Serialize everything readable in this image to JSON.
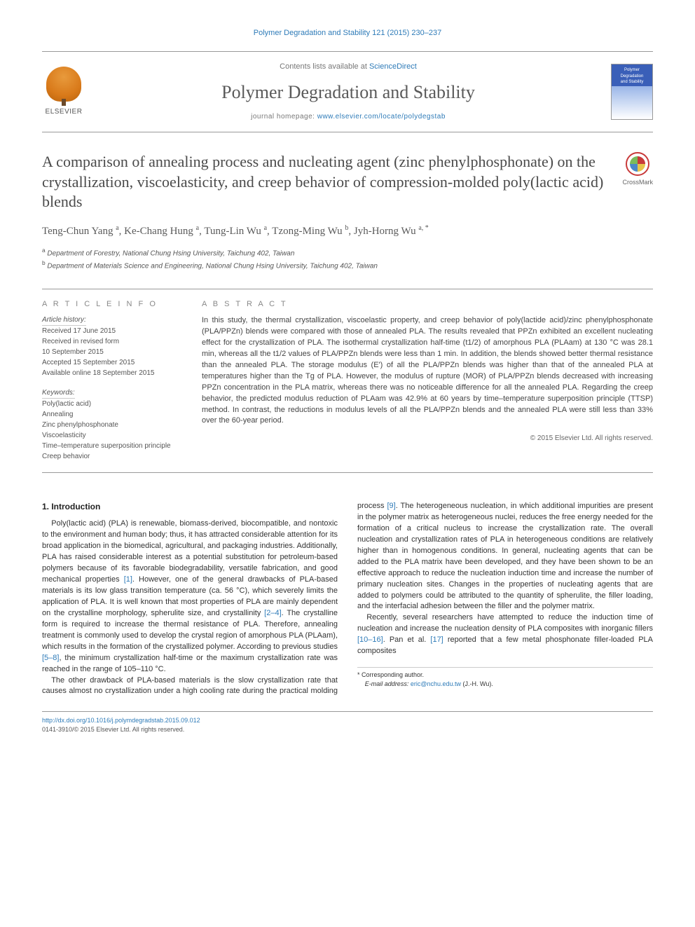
{
  "header": {
    "citation": "Polymer Degradation and Stability 121 (2015) 230–237",
    "contents_line_prefix": "Contents lists available at ",
    "contents_line_link": "ScienceDirect",
    "journal_name": "Polymer Degradation and Stability",
    "homepage_prefix": "journal homepage: ",
    "homepage_url": "www.elsevier.com/locate/polydegstab",
    "elsevier_label": "ELSEVIER",
    "cover_line1": "Polymer",
    "cover_line2": "Degradation",
    "cover_line3": "and Stability"
  },
  "title": "A comparison of annealing process and nucleating agent (zinc phenylphosphonate) on the crystallization, viscoelasticity, and creep behavior of compression-molded poly(lactic acid) blends",
  "crossmark_label": "CrossMark",
  "authors_html": "Teng-Chun Yang <sup>a</sup>, Ke-Chang Hung <sup>a</sup>, Tung-Lin Wu <sup>a</sup>, Tzong-Ming Wu <sup>b</sup>, Jyh-Horng Wu <sup>a, *</sup>",
  "affiliations": [
    "a Department of Forestry, National Chung Hsing University, Taichung 402, Taiwan",
    "b Department of Materials Science and Engineering, National Chung Hsing University, Taichung 402, Taiwan"
  ],
  "article_info": {
    "heading": "A R T I C L E  I N F O",
    "history_label": "Article history:",
    "received": "Received 17 June 2015",
    "revised1": "Received in revised form",
    "revised2": "10 September 2015",
    "accepted": "Accepted 15 September 2015",
    "online": "Available online 18 September 2015",
    "keywords_label": "Keywords:",
    "keywords": [
      "Poly(lactic acid)",
      "Annealing",
      "Zinc phenylphosphonate",
      "Viscoelasticity",
      "Time–temperature superposition principle",
      "Creep behavior"
    ]
  },
  "abstract": {
    "heading": "A B S T R A C T",
    "body": "In this study, the thermal crystallization, viscoelastic property, and creep behavior of poly(lactide acid)/zinc phenylphosphonate (PLA/PPZn) blends were compared with those of annealed PLA. The results revealed that PPZn exhibited an excellent nucleating effect for the crystallization of PLA. The isothermal crystallization half-time (t1/2) of amorphous PLA (PLAam) at 130 °C was 28.1 min, whereas all the t1/2 values of PLA/PPZn blends were less than 1 min. In addition, the blends showed better thermal resistance than the annealed PLA. The storage modulus (E') of all the PLA/PPZn blends was higher than that of the annealed PLA at temperatures higher than the Tg of PLA. However, the modulus of rupture (MOR) of PLA/PPZn blends decreased with increasing PPZn concentration in the PLA matrix, whereas there was no noticeable difference for all the annealed PLA. Regarding the creep behavior, the predicted modulus reduction of PLAam was 42.9% at 60 years by time–temperature superposition principle (TTSP) method. In contrast, the reductions in modulus levels of all the PLA/PPZn blends and the annealed PLA were still less than 33% over the 60-year period.",
    "copyright": "© 2015 Elsevier Ltd. All rights reserved."
  },
  "intro": {
    "heading": "1. Introduction",
    "p1_pre": "Poly(lactic acid) (PLA) is renewable, biomass-derived, biocompatible, and nontoxic to the environment and human body; thus, it has attracted considerable attention for its broad application in the biomedical, agricultural, and packaging industries. Additionally, PLA has raised considerable interest as a potential substitution for petroleum-based polymers because of its favorable biodegradability, versatile fabrication, and good mechanical properties ",
    "ref1": "[1]",
    "p1_mid": ". However, one of the general drawbacks of PLA-based materials is its low glass transition temperature (ca. 56 °C), which severely limits the application of PLA. It is well known that most properties of PLA are mainly dependent on the crystalline morphology, spherulite size, and crystallinity ",
    "ref24": "[2–4]",
    "p1_post": ". The crystalline form is required to increase the thermal resistance of PLA. Therefore, annealing treatment is commonly used to develop the crystal region of amorphous PLA (PLAam), which results in the formation of the crystallized polymer. According to previous studies ",
    "ref58": "[5–8]",
    "p1_tail": ", the minimum crystallization half-time or the maximum crystallization rate was reached in the range of 105–110 °C.",
    "p2_pre": "The other drawback of PLA-based materials is the slow crystallization rate that causes almost no crystallization under a high cooling rate during the practical molding process ",
    "ref9": "[9]",
    "p2_post": ". The heterogeneous nucleation, in which additional impurities are present in the polymer matrix as heterogeneous nuclei, reduces the free energy needed for the formation of a critical nucleus to increase the crystallization rate. The overall nucleation and crystallization rates of PLA in heterogeneous conditions are relatively higher than in homogenous conditions. In general, nucleating agents that can be added to the PLA matrix have been developed, and they have been shown to be an effective approach to reduce the nucleation induction time and increase the number of primary nucleation sites. Changes in the properties of nucleating agents that are added to polymers could be attributed to the quantity of spherulite, the filler loading, and the interfacial adhesion between the filler and the polymer matrix.",
    "p3_pre": "Recently, several researchers have attempted to reduce the induction time of nucleation and increase the nucleation density of PLA composites with inorganic fillers ",
    "ref1016": "[10–16]",
    "p3_mid": ". Pan et al. ",
    "ref17": "[17]",
    "p3_post": " reported that a few metal phosphonate filler-loaded PLA composites"
  },
  "footer": {
    "corr_label": "* Corresponding author.",
    "email_label": "E-mail address: ",
    "email": "eric@nchu.edu.tw",
    "email_suffix": " (J.-H. Wu).",
    "doi_url": "http://dx.doi.org/10.1016/j.polymdegradstab.2015.09.012",
    "issn_line": "0141-3910/© 2015 Elsevier Ltd. All rights reserved."
  },
  "colors": {
    "link": "#2e7bb8",
    "text_muted": "#777",
    "rule": "#999"
  }
}
